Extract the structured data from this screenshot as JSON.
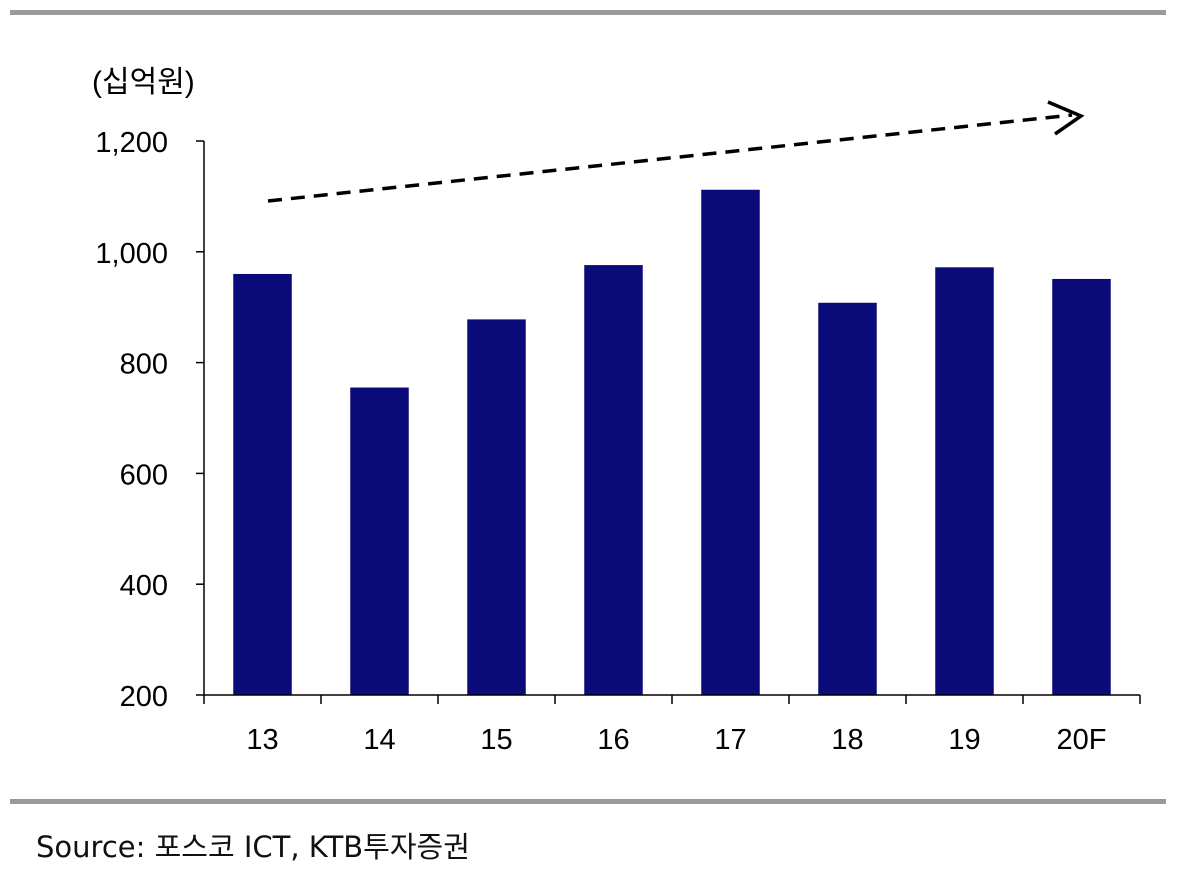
{
  "chart_data": {
    "type": "bar",
    "unit_label": "(십억원)",
    "categories": [
      "13",
      "14",
      "15",
      "16",
      "17",
      "18",
      "19",
      "20F"
    ],
    "values": [
      960,
      755,
      878,
      976,
      1112,
      908,
      972,
      951
    ],
    "ylim": [
      200,
      1200
    ],
    "yticks": [
      "200",
      "400",
      "600",
      "800",
      "1,000",
      "1,200"
    ],
    "ytick_values": [
      200,
      400,
      600,
      800,
      1000,
      1200
    ],
    "grid": false,
    "legend": "none",
    "bar_color": "#0a0a78",
    "annotation": "dashed upward trend arrow"
  },
  "source": "Source: 포스코 ICT, KTB투자증권"
}
